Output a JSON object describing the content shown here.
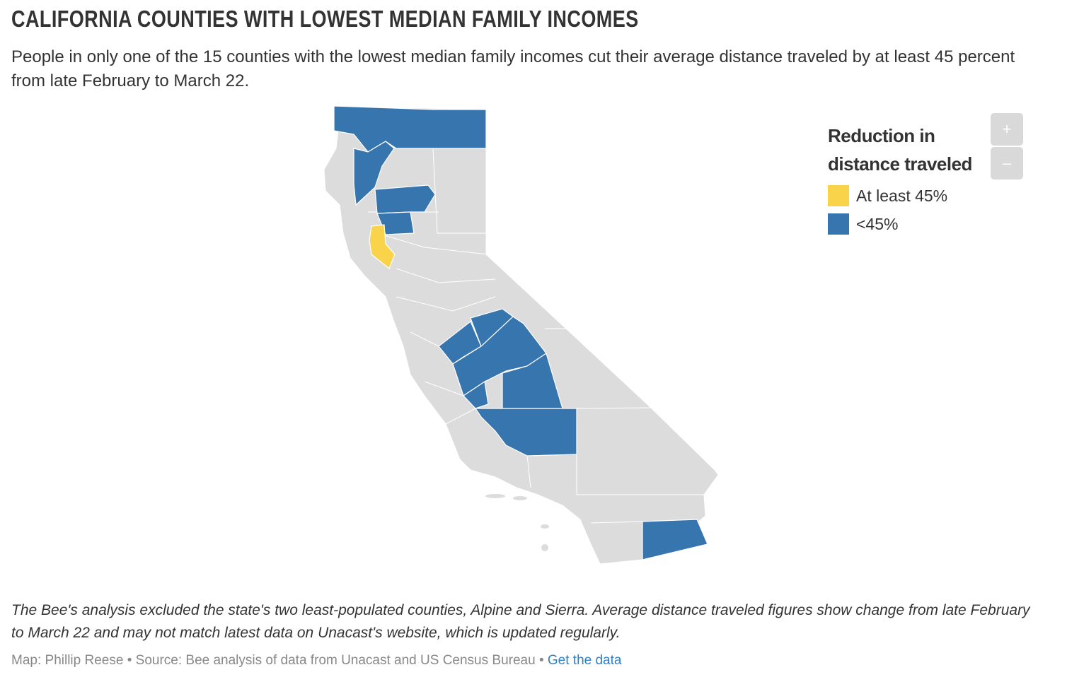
{
  "title": "CALIFORNIA COUNTIES WITH LOWEST MEDIAN FAMILY INCOMES",
  "subtitle": "People in only one of the 15 counties with the lowest median family incomes cut their average distance traveled by at least 45 percent from late February to March 22.",
  "legend": {
    "title": "Reduction in distance traveled",
    "items": [
      {
        "label": "At least 45%",
        "color": "#f9d44a"
      },
      {
        "label": "<45%",
        "color": "#3775ae"
      }
    ]
  },
  "zoom": {
    "in": "+",
    "out": "–"
  },
  "colors": {
    "base": "#dcdcdc",
    "high": "#f9d44a",
    "low": "#3775ae"
  },
  "note": "The Bee's analysis excluded the state's two least-populated counties, Alpine and Sierra. Average distance traveled figures show change from late February to March 22 and may not match latest data on Unacast's website, which is updated regularly.",
  "credit": {
    "map": "Map: Phillip Reese",
    "sep": " • ",
    "source": "Source: Bee analysis of data from Unacast and US Census Bureau",
    "link": "Get the data"
  }
}
